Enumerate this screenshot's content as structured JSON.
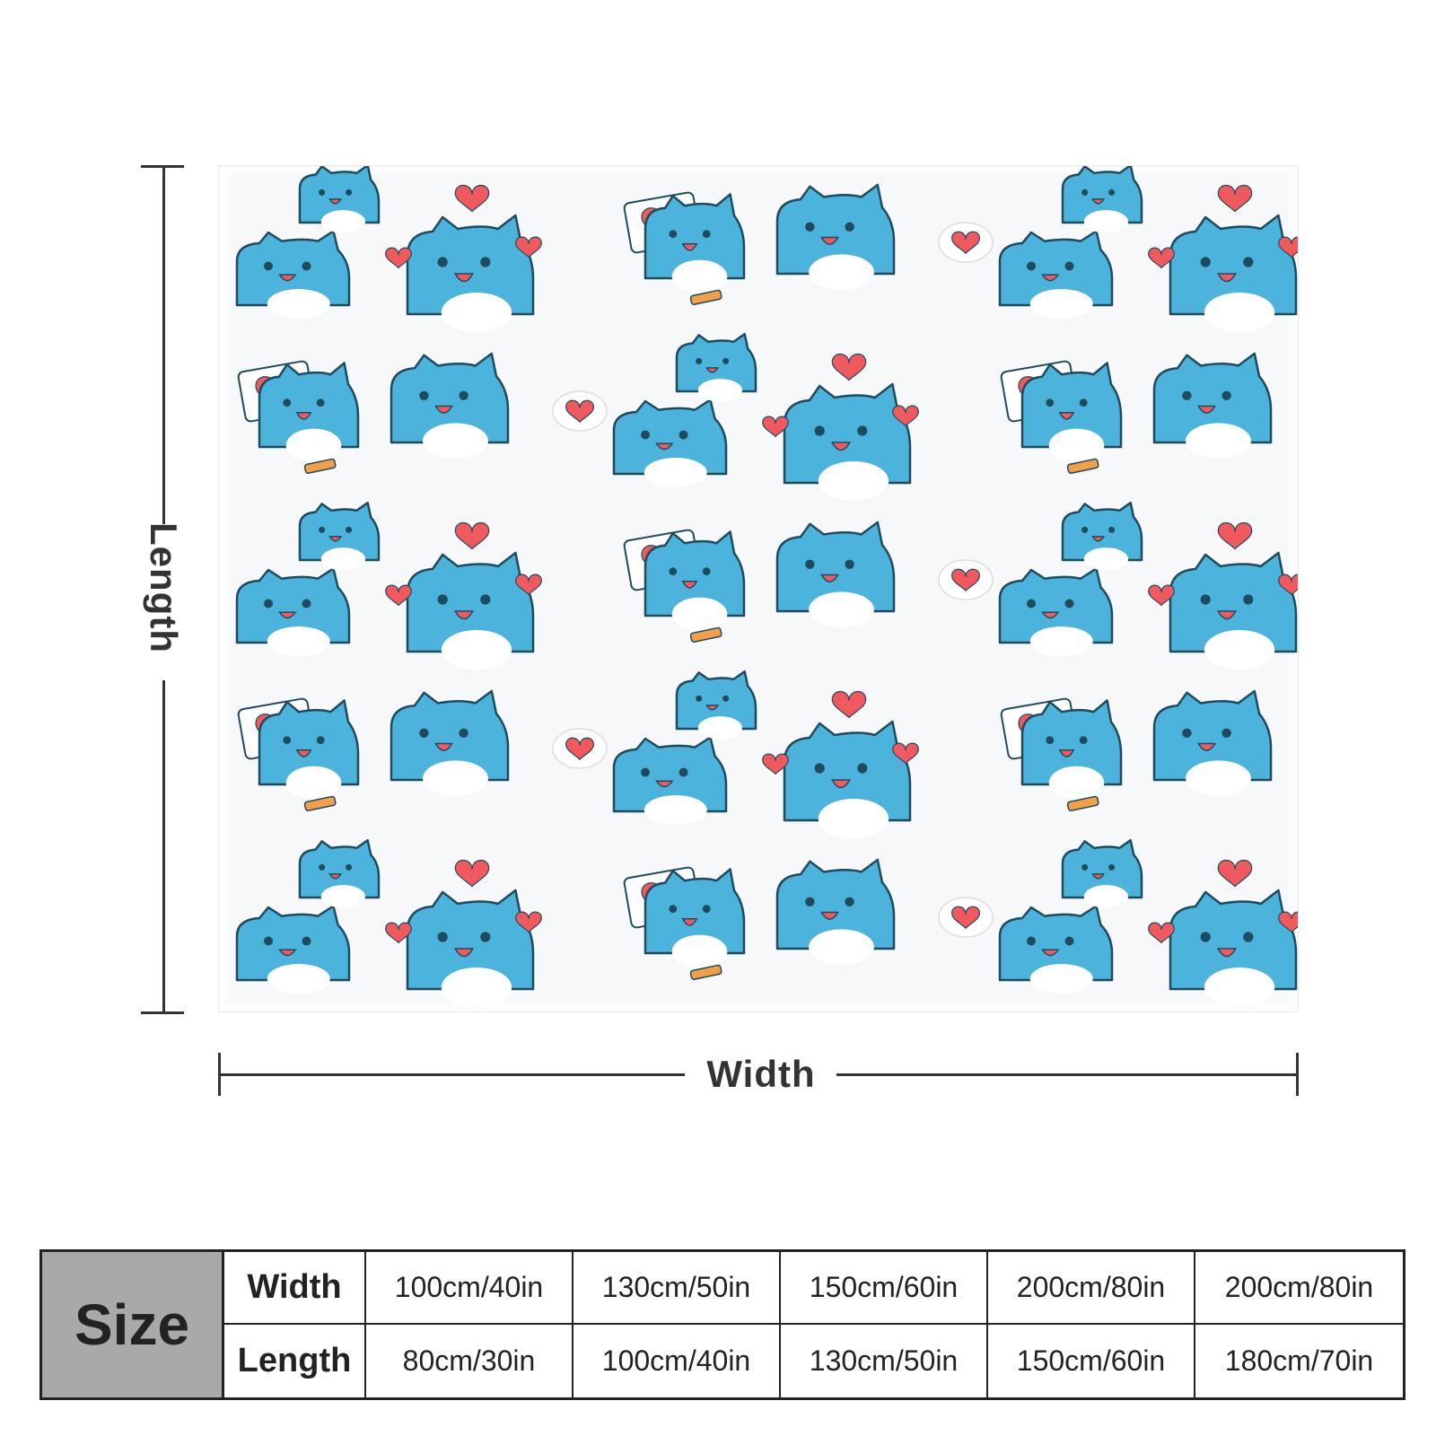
{
  "dimensions": {
    "length_label": "Length",
    "width_label": "Width"
  },
  "pattern": {
    "character_color": "#4bb3dc",
    "outline_color": "#1f4b5e",
    "heart_color": "#f05a5e",
    "pencil_color": "#f0a04a"
  },
  "size_table": {
    "title": "Size",
    "rows": [
      {
        "label": "Width",
        "values": [
          "100cm/40in",
          "130cm/50in",
          "150cm/60in",
          "200cm/80in",
          "200cm/80in"
        ]
      },
      {
        "label": "Length",
        "values": [
          "80cm/30in",
          "100cm/40in",
          "130cm/50in",
          "150cm/60in",
          "180cm/70in"
        ]
      }
    ]
  }
}
